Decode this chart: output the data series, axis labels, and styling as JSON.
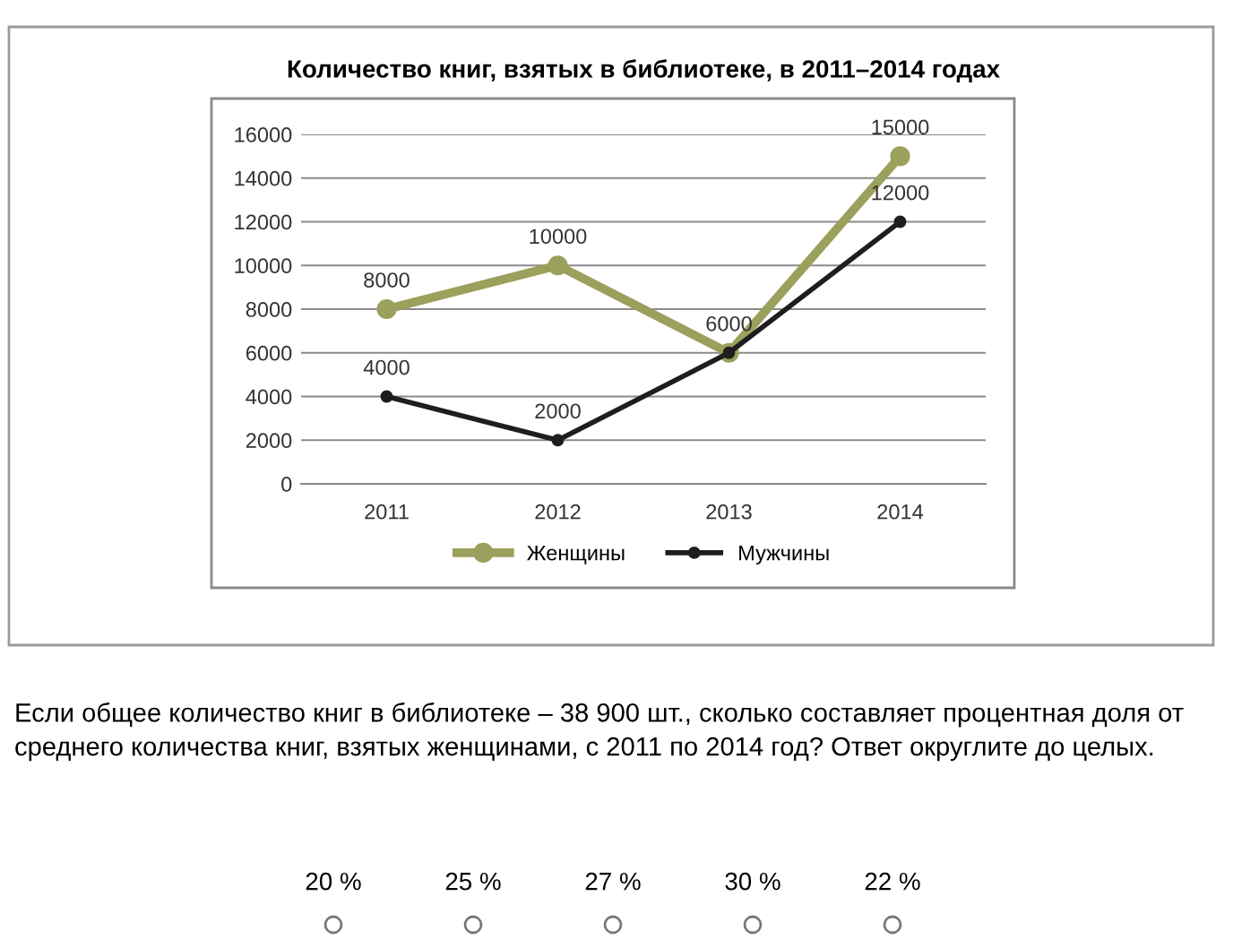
{
  "chart_data": {
    "type": "line",
    "title": "Количество книг, взятых в библиотеке, в 2011–2014 годах",
    "categories": [
      "2011",
      "2012",
      "2013",
      "2014"
    ],
    "series": [
      {
        "name": "Женщины",
        "color": "#9ba05c",
        "values": [
          8000,
          10000,
          6000,
          15000
        ],
        "value_labels": [
          "8000",
          "10000",
          null,
          "15000"
        ]
      },
      {
        "name": "Мужчины",
        "color": "#1e1e1e",
        "values": [
          4000,
          2000,
          6000,
          12000
        ],
        "value_labels": [
          "4000",
          "2000",
          "6000",
          "12000"
        ]
      }
    ],
    "ylim": [
      0,
      16000
    ],
    "yticks": [
      0,
      2000,
      4000,
      6000,
      8000,
      10000,
      12000,
      14000,
      16000
    ],
    "grid": "y",
    "legend": "bottom",
    "marker": "circle",
    "line_style": "solid",
    "annotations": [
      "Если общее количество книг в библиотеке – 38 900 шт., сколько составляет процентная доля от среднего количества книг, взятых женщинами, с 2011 по 2014 год? Ответ округлите до целых.",
      "20 %",
      "25 %",
      "27 %",
      "30 %",
      "22 %"
    ]
  }
}
